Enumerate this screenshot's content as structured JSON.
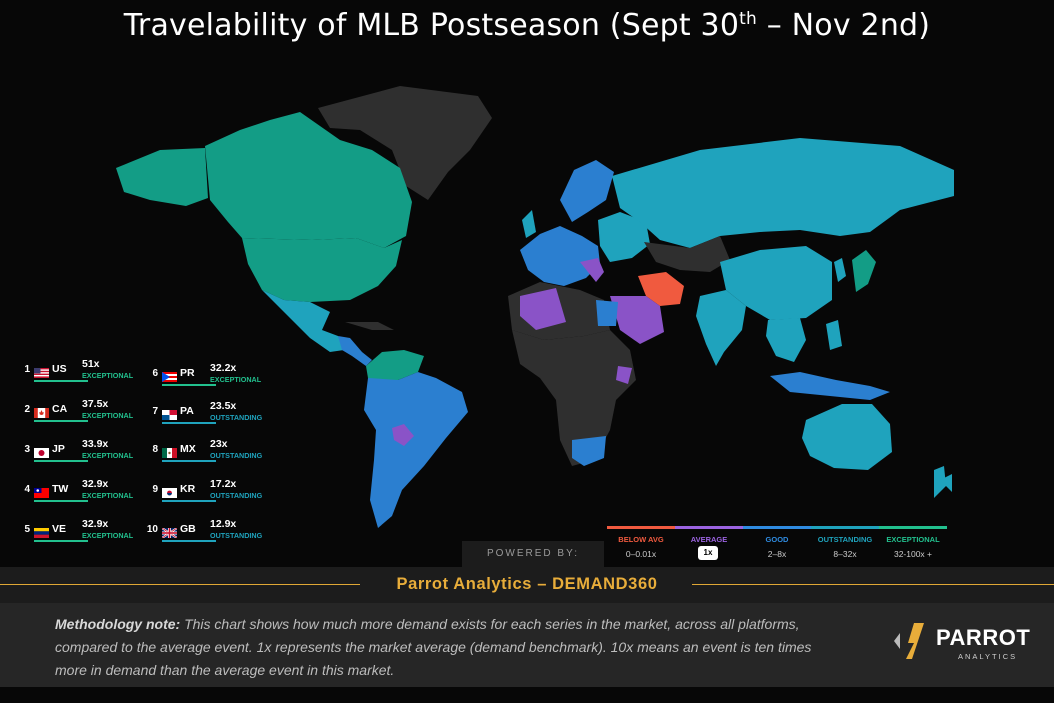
{
  "title": {
    "prefix": "Travelability of MLB Postseason (Sept 30",
    "sup": "th",
    "suffix": " – Nov 2nd)"
  },
  "colors": {
    "exceptional": "#139d86",
    "outstanding": "#1fa3bd",
    "good": "#2b7fd0",
    "average": "#8a53c7",
    "below_avg": "#f05a3f",
    "no_data": "#2f2f2f"
  },
  "rankings": [
    {
      "rank": "1",
      "flag": "us-flag-icon",
      "code": "US",
      "value": "51x",
      "tier": "EXCEPTIONAL"
    },
    {
      "rank": "2",
      "flag": "ca-flag-icon",
      "code": "CA",
      "value": "37.5x",
      "tier": "EXCEPTIONAL"
    },
    {
      "rank": "3",
      "flag": "jp-flag-icon",
      "code": "JP",
      "value": "33.9x",
      "tier": "EXCEPTIONAL"
    },
    {
      "rank": "4",
      "flag": "tw-flag-icon",
      "code": "TW",
      "value": "32.9x",
      "tier": "EXCEPTIONAL"
    },
    {
      "rank": "5",
      "flag": "ve-flag-icon",
      "code": "VE",
      "value": "32.9x",
      "tier": "EXCEPTIONAL"
    },
    {
      "rank": "6",
      "flag": "pr-flag-icon",
      "code": "PR",
      "value": "32.2x",
      "tier": "EXCEPTIONAL"
    },
    {
      "rank": "7",
      "flag": "pa-flag-icon",
      "code": "PA",
      "value": "23.5x",
      "tier": "OUTSTANDING"
    },
    {
      "rank": "8",
      "flag": "mx-flag-icon",
      "code": "MX",
      "value": "23x",
      "tier": "OUTSTANDING"
    },
    {
      "rank": "9",
      "flag": "kr-flag-icon",
      "code": "KR",
      "value": "17.2x",
      "tier": "OUTSTANDING"
    },
    {
      "rank": "10",
      "flag": "gb-flag-icon",
      "code": "GB",
      "value": "12.9x",
      "tier": "OUTSTANDING"
    }
  ],
  "legend": [
    {
      "label": "BELOW AVG",
      "range": "0–0.01x",
      "color": "#f05a3f"
    },
    {
      "label": "AVERAGE",
      "range": "1x",
      "color": "#9b63e0"
    },
    {
      "label": "GOOD",
      "range": "2–8x",
      "color": "#2f8be0"
    },
    {
      "label": "OUTSTANDING",
      "range": "8–32x",
      "color": "#1fa3bd"
    },
    {
      "label": "EXCEPTIONAL",
      "range": "32-100x +",
      "color": "#22c08e"
    }
  ],
  "powered_by": "POWERED BY:",
  "banner": "Parrot Analytics – DEMAND360",
  "methodology": {
    "label": "Methodology note:",
    "text": " This chart shows how much more demand exists for each series in the market, across all platforms, compared to the average event. 1x represents the market average (demand benchmark). 10x means an event is ten times more in demand than the average event in this market."
  },
  "logo": {
    "word": "PARROT",
    "sub": "ANALYTICS"
  }
}
